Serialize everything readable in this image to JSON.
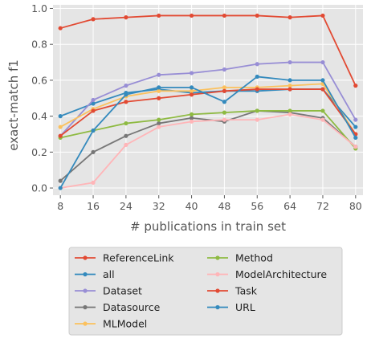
{
  "chart_data": {
    "type": "line",
    "title": "",
    "xlabel": "# publications in train set",
    "ylabel": "exact-match f1",
    "x": [
      8,
      16,
      24,
      32,
      40,
      48,
      56,
      64,
      72,
      80
    ],
    "xticks": [
      "8",
      "16",
      "24",
      "32",
      "40",
      "48",
      "56",
      "64",
      "72",
      "80"
    ],
    "yticks": [
      "0.0",
      "0.2",
      "0.4",
      "0.6",
      "0.8",
      "1.0"
    ],
    "ylim": [
      -0.04,
      1.02
    ],
    "xlim": [
      6.2,
      81.8
    ],
    "grid": true,
    "legend_position": "below",
    "series": [
      {
        "name": "ReferenceLink",
        "color": "#E24A33",
        "values": [
          0.89,
          0.94,
          0.95,
          0.96,
          0.96,
          0.96,
          0.96,
          0.95,
          0.96,
          0.57
        ]
      },
      {
        "name": "all",
        "color": "#348ABD",
        "values": [
          0.4,
          0.47,
          0.53,
          0.55,
          0.53,
          0.54,
          0.54,
          0.55,
          0.55,
          0.34
        ]
      },
      {
        "name": "Dataset",
        "color": "#988ED5",
        "values": [
          0.29,
          0.49,
          0.57,
          0.63,
          0.64,
          0.66,
          0.69,
          0.7,
          0.7,
          0.38
        ]
      },
      {
        "name": "Datasource",
        "color": "#777777",
        "values": [
          0.04,
          0.2,
          0.29,
          0.36,
          0.39,
          0.37,
          0.43,
          0.42,
          0.39,
          0.23
        ]
      },
      {
        "name": "MLModel",
        "color": "#FBC15E",
        "values": [
          0.34,
          0.44,
          0.51,
          0.54,
          0.54,
          0.56,
          0.56,
          0.57,
          0.58,
          0.3
        ]
      },
      {
        "name": "Method",
        "color": "#8EBA42",
        "values": [
          0.28,
          0.32,
          0.36,
          0.38,
          0.41,
          0.42,
          0.43,
          0.43,
          0.43,
          0.22
        ]
      },
      {
        "name": "ModelArchitecture",
        "color": "#FFB5B8",
        "values": [
          0.0,
          0.03,
          0.24,
          0.34,
          0.37,
          0.38,
          0.38,
          0.41,
          0.38,
          0.23
        ]
      },
      {
        "name": "Task",
        "color": "#E24A33",
        "values": [
          0.29,
          0.43,
          0.48,
          0.5,
          0.52,
          0.54,
          0.55,
          0.55,
          0.55,
          0.3
        ]
      },
      {
        "name": "URL",
        "color": "#348ABD",
        "values": [
          0.0,
          0.32,
          0.52,
          0.56,
          0.56,
          0.48,
          0.62,
          0.6,
          0.6,
          0.28
        ]
      }
    ]
  }
}
